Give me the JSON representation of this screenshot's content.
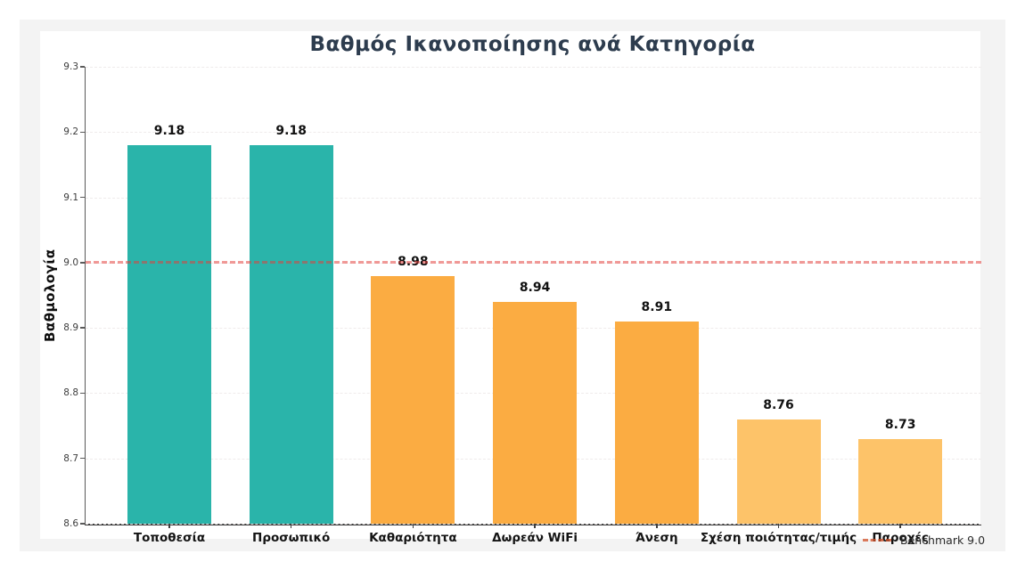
{
  "chart_data": {
    "type": "bar",
    "title": "Βαθμός Ικανοποίησης ανά Κατηγορία",
    "ylabel": "Βαθμολογία",
    "xlabel": "",
    "categories": [
      "Τοποθεσία",
      "Προσωπικό",
      "Καθαριότητα",
      "Δωρεάν WiFi",
      "Άνεση",
      "Σχέση ποιότητας/τιμής",
      "Παροχές"
    ],
    "values": [
      9.18,
      9.18,
      8.98,
      8.94,
      8.91,
      8.76,
      8.73
    ],
    "value_labels": [
      "9.18",
      "9.18",
      "8.98",
      "8.94",
      "8.91",
      "8.76",
      "8.73"
    ],
    "bar_colors": [
      "#2ab4aa",
      "#2ab4aa",
      "#fbac42",
      "#fbac42",
      "#fbac42",
      "#fdc369",
      "#fdc369"
    ],
    "ylim": [
      8.6,
      9.3
    ],
    "yticks": [
      "8.6",
      "8.7",
      "8.8",
      "8.9",
      "9.0",
      "9.1",
      "9.2",
      "9.3"
    ],
    "grid": true,
    "benchmark": {
      "value": 9.0,
      "label": "Benchmark 9.0",
      "color": "#e53e3a",
      "style": "dashed"
    },
    "legend_position": "lower right"
  },
  "colors": {
    "title": "#2d3c4e",
    "teal_bar": "#2ab4aa",
    "orange_bar": "#fbac42",
    "light_orange_bar": "#fdc369",
    "benchmark_line": "#e53e3a",
    "figure_margin": "#f3f3f3",
    "plot_background": "#ffffff"
  }
}
